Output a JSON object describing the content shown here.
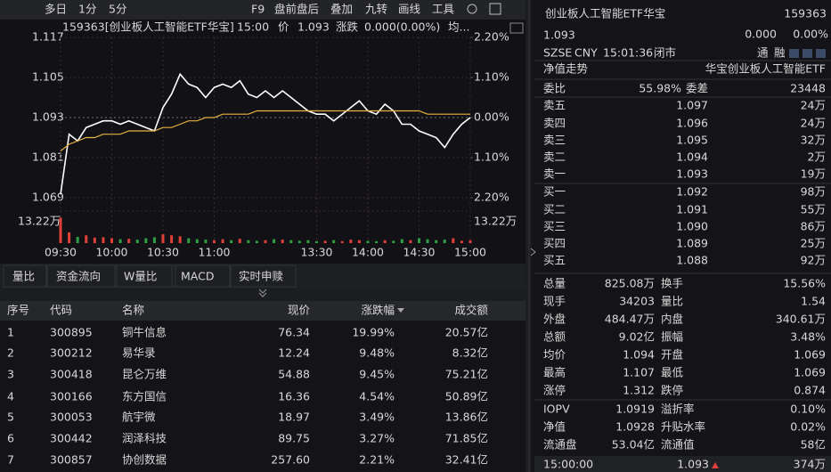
{
  "toolbar": {
    "left": [
      "多日",
      "1分",
      "5分"
    ],
    "right": [
      "F9",
      "盘前盘后",
      "叠加",
      "九转",
      "画线",
      "工具"
    ]
  },
  "chart_header": {
    "code_name": "159363[创业板人工智能ETF华宝]",
    "time": "15:00",
    "price_label": "价",
    "price": "1.093",
    "change_label": "涨跌",
    "change": "0.000(0.00%)",
    "avg_label": "均..."
  },
  "chart_data": {
    "type": "line",
    "x": [
      "09:30",
      "09:35",
      "09:40",
      "09:45",
      "09:50",
      "09:55",
      "10:00",
      "10:05",
      "10:10",
      "10:15",
      "10:20",
      "10:25",
      "10:30",
      "10:35",
      "10:40",
      "10:45",
      "10:50",
      "10:55",
      "11:00",
      "11:05",
      "11:10",
      "11:15",
      "11:20",
      "11:25",
      "11:30",
      "13:05",
      "13:10",
      "13:15",
      "13:20",
      "13:25",
      "13:30",
      "13:35",
      "13:40",
      "13:45",
      "13:50",
      "13:55",
      "14:00",
      "14:05",
      "14:10",
      "14:15",
      "14:20",
      "14:25",
      "14:30",
      "14:35",
      "14:40",
      "14:45",
      "14:50",
      "14:55",
      "15:00"
    ],
    "series": [
      {
        "color": "#ffffff",
        "values": [
          1.07,
          1.088,
          1.086,
          1.09,
          1.091,
          1.092,
          1.092,
          1.091,
          1.092,
          1.091,
          1.09,
          1.089,
          1.096,
          1.1,
          1.106,
          1.103,
          1.102,
          1.099,
          1.102,
          1.103,
          1.102,
          1.104,
          1.1,
          1.099,
          1.101,
          1.099,
          1.101,
          1.099,
          1.097,
          1.095,
          1.094,
          1.094,
          1.092,
          1.094,
          1.096,
          1.098,
          1.095,
          1.094,
          1.097,
          1.095,
          1.091,
          1.091,
          1.089,
          1.088,
          1.087,
          1.084,
          1.088,
          1.091,
          1.093
        ]
      },
      {
        "color": "#e8b040",
        "values": [
          1.083,
          1.085,
          1.086,
          1.087,
          1.087,
          1.088,
          1.088,
          1.088,
          1.089,
          1.089,
          1.089,
          1.089,
          1.09,
          1.09,
          1.091,
          1.092,
          1.092,
          1.093,
          1.093,
          1.094,
          1.094,
          1.094,
          1.094,
          1.095,
          1.095,
          1.095,
          1.095,
          1.095,
          1.095,
          1.095,
          1.095,
          1.095,
          1.095,
          1.095,
          1.095,
          1.095,
          1.095,
          1.095,
          1.095,
          1.095,
          1.095,
          1.095,
          1.095,
          1.094,
          1.094,
          1.094,
          1.094,
          1.094,
          1.094
        ]
      }
    ],
    "ylim": [
      1.069,
      1.117
    ],
    "yticks": [
      1.117,
      1.105,
      1.093,
      1.081,
      1.069
    ],
    "y2lim": [
      -2.2,
      2.2
    ],
    "y2ticks": [
      {
        "value": 2.2,
        "label": "2.20%"
      },
      {
        "value": 1.1,
        "label": "1.10%"
      },
      {
        "value": 0,
        "label": "0.00%"
      },
      {
        "value": -1.1,
        "label": "1.10%"
      },
      {
        "value": -2.2,
        "label": "2.20%"
      }
    ],
    "xticks": [
      "09:30",
      "10:00",
      "10:30",
      "11:00",
      "13:30",
      "14:00",
      "14:30",
      "15:00"
    ],
    "grid": true,
    "volume": {
      "up_color": "#e0403a",
      "down_color": "#2ea043",
      "ylim": [
        0,
        13.22
      ],
      "yticks": [
        {
          "value": 13.22,
          "label": "13.22万"
        }
      ],
      "values": [
        13.0,
        5.5,
        3.2,
        4.0,
        2.8,
        3.0,
        2.5,
        2.0,
        2.2,
        1.8,
        2.5,
        3.0,
        4.5,
        4.0,
        3.5,
        2.5,
        2.0,
        1.8,
        1.5,
        2.0,
        1.5,
        2.2,
        1.5,
        1.2,
        1.5,
        2.0,
        1.8,
        1.5,
        1.2,
        1.5,
        1.0,
        1.2,
        1.5,
        1.0,
        1.8,
        1.5,
        1.2,
        1.0,
        1.5,
        1.2,
        2.0,
        1.5,
        2.5,
        2.0,
        1.5,
        1.8,
        2.5,
        1.2,
        1.5
      ]
    }
  },
  "tabs": [
    "量比",
    "资金流向",
    "W量比",
    "MACD",
    "实时申赎"
  ],
  "table": {
    "columns": [
      "序号",
      "代码",
      "名称",
      "现价",
      "涨跌幅",
      "成交额"
    ],
    "rows": [
      [
        "1",
        "300895",
        "铜牛信息",
        "76.34",
        "19.99%",
        "20.57亿"
      ],
      [
        "2",
        "300212",
        "易华录",
        "12.24",
        "9.48%",
        "8.32亿"
      ],
      [
        "3",
        "300418",
        "昆仑万维",
        "54.88",
        "9.45%",
        "75.21亿"
      ],
      [
        "4",
        "300166",
        "东方国信",
        "16.36",
        "4.54%",
        "50.89亿"
      ],
      [
        "5",
        "300053",
        "航宇微",
        "18.97",
        "3.49%",
        "13.86亿"
      ],
      [
        "6",
        "300442",
        "润泽科技",
        "89.75",
        "3.27%",
        "71.85亿"
      ],
      [
        "7",
        "300857",
        "协创数据",
        "257.60",
        "2.21%",
        "32.41亿"
      ]
    ]
  },
  "quote": {
    "name": "创业板人工智能ETF华宝",
    "code": "159363",
    "price": "1.093",
    "change": "0.000",
    "change_pct": "0.00%",
    "exchange": "SZSE",
    "currency": "CNY",
    "time": "15:01:36",
    "status": "闭市",
    "badges": [
      "通",
      "融"
    ],
    "nav_trend": "净值走势",
    "fund_name": "华宝创业板人工智能ETF",
    "ratio_label": "委比",
    "ratio": "55.98%",
    "diff_label": "委差",
    "diff": "23448",
    "asks": [
      [
        "卖五",
        "1.097",
        "24万"
      ],
      [
        "卖四",
        "1.096",
        "24万"
      ],
      [
        "卖三",
        "1.095",
        "32万"
      ],
      [
        "卖二",
        "1.094",
        "2万"
      ],
      [
        "卖一",
        "1.093",
        "19万"
      ]
    ],
    "bids": [
      [
        "买一",
        "1.092",
        "98万"
      ],
      [
        "买二",
        "1.091",
        "55万"
      ],
      [
        "买三",
        "1.090",
        "86万"
      ],
      [
        "买四",
        "1.089",
        "25万"
      ],
      [
        "买五",
        "1.088",
        "92万"
      ]
    ],
    "stats": [
      [
        "总量",
        "825.08万",
        "换手",
        "15.56%"
      ],
      [
        "现手",
        "34203",
        "量比",
        "1.54"
      ],
      [
        "外盘",
        "484.47万",
        "内盘",
        "340.61万"
      ],
      [
        "总额",
        "9.02亿",
        "振幅",
        "3.48%"
      ],
      [
        "均价",
        "1.094",
        "开盘",
        "1.069"
      ],
      [
        "最高",
        "1.107",
        "最低",
        "1.069"
      ],
      [
        "涨停",
        "1.312",
        "跌停",
        "0.874"
      ]
    ],
    "iopv": [
      [
        "IOPV",
        "1.0919",
        "溢折率",
        "0.10%"
      ],
      [
        "净值",
        "1.0928",
        "升贴水率",
        "0.02%"
      ],
      [
        "流通盘",
        "53.04亿",
        "流通值",
        "58亿"
      ]
    ],
    "last_trade": {
      "time": "15:00:00",
      "price": "1.093",
      "volume": "374万"
    }
  }
}
